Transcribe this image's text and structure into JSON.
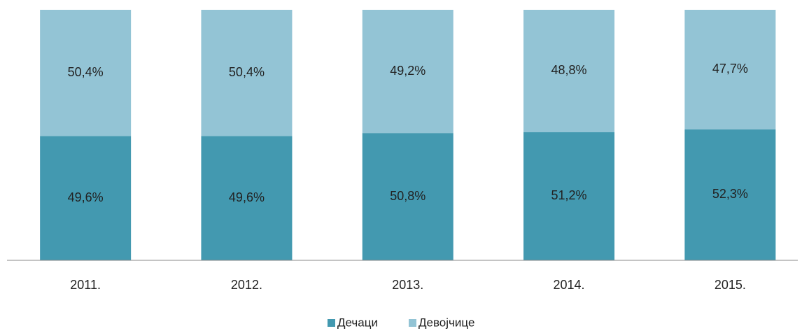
{
  "chart_data": {
    "type": "stacked_bar",
    "categories": [
      "2011.",
      "2012.",
      "2013.",
      "2014.",
      "2015."
    ],
    "series": [
      {
        "name": "Дечаци",
        "color": "#4399b0",
        "values": [
          49.6,
          49.6,
          50.8,
          51.2,
          52.3
        ],
        "value_labels": [
          "49,6%",
          "49,6%",
          "50,8%",
          "51,2%",
          "52,3%"
        ]
      },
      {
        "name": "Девојчице",
        "color": "#93c4d5",
        "values": [
          50.4,
          50.4,
          49.2,
          48.8,
          47.7
        ],
        "value_labels": [
          "50,4%",
          "50,4%",
          "49,2%",
          "48,8%",
          "47,7%"
        ]
      }
    ],
    "ylim": [
      0,
      100
    ]
  }
}
